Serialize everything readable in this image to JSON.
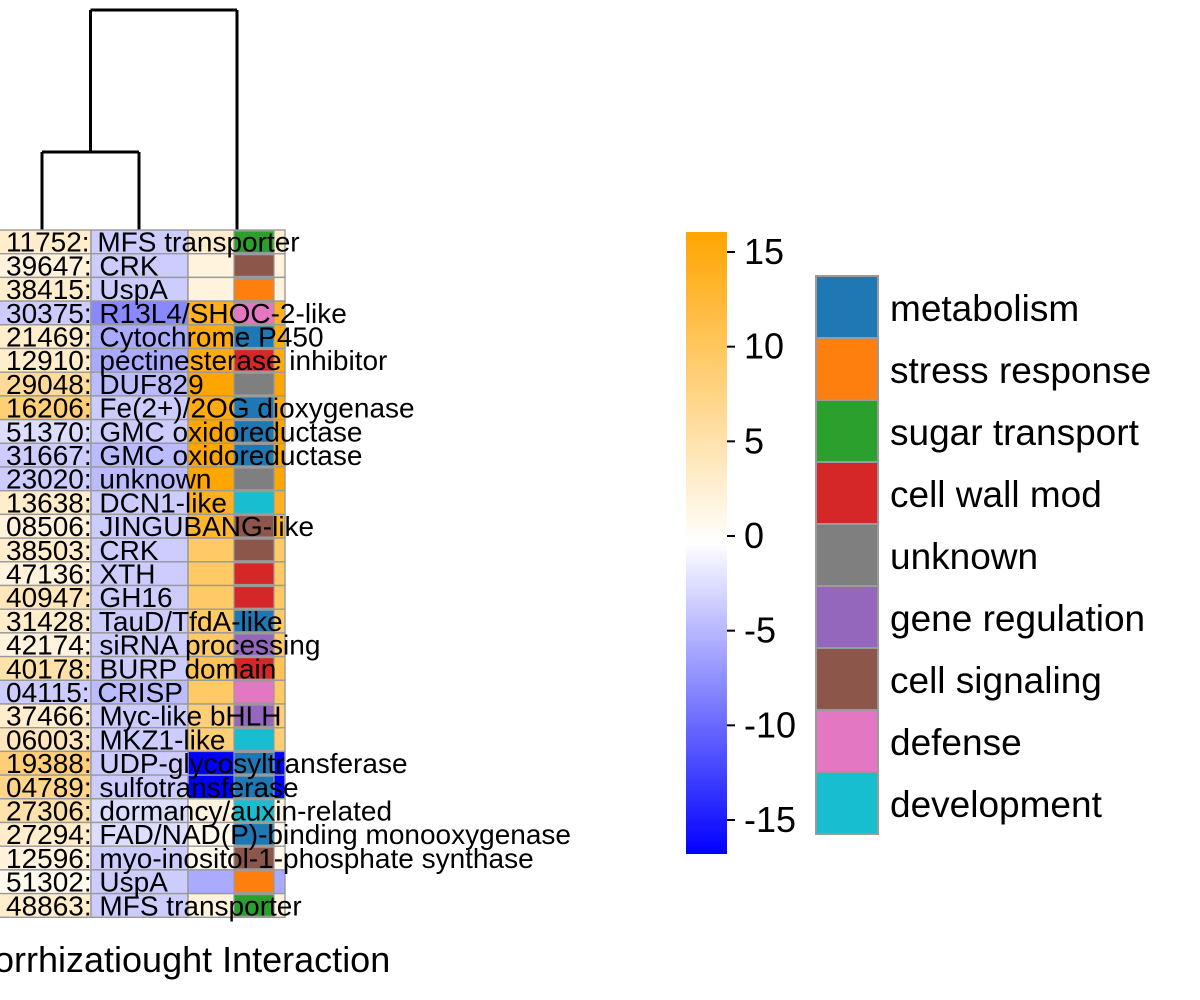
{
  "chart_data": {
    "type": "heatmap",
    "columns": [
      "Mycorrhization",
      "Drought",
      "Interaction"
    ],
    "column_label_text": "orrhizatiought Interaction",
    "rows": [
      {
        "label": "11752: MFS transporter",
        "values": [
          3,
          -3,
          3
        ],
        "category": "sugar transport"
      },
      {
        "label": "39647: CRK",
        "values": [
          2,
          -3,
          2
        ],
        "category": "cell signaling"
      },
      {
        "label": "38415: UspA",
        "values": [
          3,
          -3,
          2
        ],
        "category": "stress response"
      },
      {
        "label": "30375: R13L4/SHOC-2-like",
        "values": [
          -3,
          -7,
          13
        ],
        "category": "defense"
      },
      {
        "label": "21469: Cytochrome P450",
        "values": [
          3,
          -5,
          14
        ],
        "category": "metabolism"
      },
      {
        "label": "12910: pectinesterase inhibitor",
        "values": [
          3,
          -5,
          14
        ],
        "category": "cell wall mod"
      },
      {
        "label": "29048: DUF829",
        "values": [
          6,
          -4,
          15
        ],
        "category": "unknown"
      },
      {
        "label": "16206: Fe(2+)/2OG dioxygenase",
        "values": [
          8,
          -3,
          14
        ],
        "category": "metabolism"
      },
      {
        "label": "51370: GMC oxidoreductase",
        "values": [
          -2,
          -3,
          15
        ],
        "category": "metabolism"
      },
      {
        "label": "31667: GMC oxidoreductase",
        "values": [
          -3,
          -4,
          15
        ],
        "category": "metabolism"
      },
      {
        "label": "23020: unknown",
        "values": [
          -3,
          -4,
          15
        ],
        "category": "unknown"
      },
      {
        "label": "13638: DCN1-like",
        "values": [
          3,
          -3,
          13
        ],
        "category": "development"
      },
      {
        "label": "08506: JINGUBANG-like",
        "values": [
          2,
          -3,
          12
        ],
        "category": "cell signaling"
      },
      {
        "label": "38503: CRK",
        "values": [
          3,
          -3,
          9
        ],
        "category": "cell signaling"
      },
      {
        "label": "47136: XTH",
        "values": [
          2,
          -3,
          9
        ],
        "category": "cell wall mod"
      },
      {
        "label": "40947: GH16",
        "values": [
          4,
          -3,
          9
        ],
        "category": "cell wall mod"
      },
      {
        "label": "31428: TauD/TfdA-like",
        "values": [
          3,
          -3,
          9
        ],
        "category": "metabolism"
      },
      {
        "label": "42174: siRNA processing",
        "values": [
          2,
          -3,
          9
        ],
        "category": "gene regulation"
      },
      {
        "label": "40178: BURP domain",
        "values": [
          5,
          -3,
          10
        ],
        "category": "cell wall mod"
      },
      {
        "label": "04115: CRISP",
        "values": [
          -3,
          -4,
          9
        ],
        "category": "defense"
      },
      {
        "label": "37466: Myc-like bHLH",
        "values": [
          3,
          -3,
          8
        ],
        "category": "gene regulation"
      },
      {
        "label": "06003: MKZ1-like",
        "values": [
          4,
          -3,
          8
        ],
        "category": "development"
      },
      {
        "label": "19388: UDP-glycosyltransferase",
        "values": [
          8,
          -3,
          -15
        ],
        "category": "metabolism"
      },
      {
        "label": "04789: sulfotransferase",
        "values": [
          7,
          -3,
          -15
        ],
        "category": "metabolism"
      },
      {
        "label": "27306: dormancy/auxin-related",
        "values": [
          5,
          -2,
          2
        ],
        "category": "development"
      },
      {
        "label": "27294: FAD/NAD(P)-binding monooxygenase",
        "values": [
          3,
          -2,
          1
        ],
        "category": "metabolism"
      },
      {
        "label": "12596: myo-inositol-1-phosphate synthase",
        "values": [
          2,
          -3,
          1
        ],
        "category": "cell signaling"
      },
      {
        "label": "51302: UspA",
        "values": [
          1,
          -3,
          -5
        ],
        "category": "stress response"
      },
      {
        "label": "48863: MFS transporter",
        "values": [
          3,
          -3,
          2
        ],
        "category": "sugar transport"
      }
    ],
    "colorbar": {
      "min": -15,
      "max": 15,
      "ticks": [
        "15",
        "10",
        "5",
        "0",
        "-5",
        "-10",
        "-15"
      ],
      "low_color": "#0000ff",
      "mid_color": "#ffffff",
      "high_color": "#ffa500"
    },
    "legend": [
      {
        "label": "metabolism",
        "color": "#1f77b4"
      },
      {
        "label": "stress response",
        "color": "#ff7f0e"
      },
      {
        "label": "sugar transport",
        "color": "#2ca02c"
      },
      {
        "label": "cell wall mod",
        "color": "#d62728"
      },
      {
        "label": "unknown",
        "color": "#7f7f7f"
      },
      {
        "label": "gene regulation",
        "color": "#9467bd"
      },
      {
        "label": "cell signaling",
        "color": "#8c564b"
      },
      {
        "label": "defense",
        "color": "#e377c2"
      },
      {
        "label": "development",
        "color": "#17becf"
      }
    ],
    "column_dendrogram": true
  }
}
